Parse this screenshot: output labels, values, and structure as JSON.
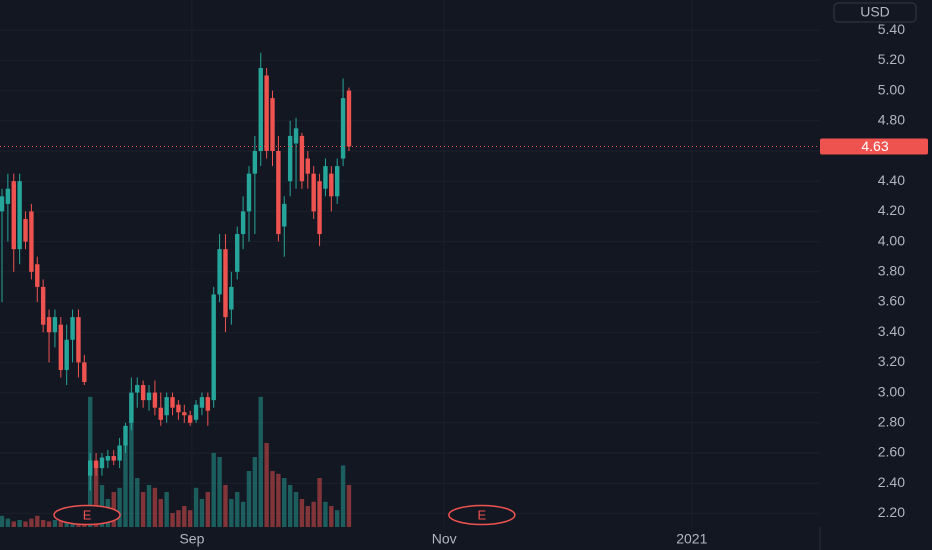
{
  "chart_data": {
    "type": "candlestick",
    "currency": "USD",
    "x": [
      0,
      1,
      2,
      3,
      4,
      5,
      6,
      7,
      8,
      9,
      10,
      11,
      12,
      13,
      14,
      15,
      16,
      17,
      18,
      19,
      20,
      21,
      22,
      23,
      24,
      25,
      26,
      27,
      28,
      29,
      30,
      31,
      32,
      33,
      34,
      35,
      36,
      37,
      38,
      39,
      40,
      41,
      42,
      43,
      44,
      45,
      46,
      47,
      48,
      49,
      50,
      51,
      52,
      53,
      54,
      55,
      56,
      57,
      58,
      59
    ],
    "open": [
      4.2,
      4.25,
      4.4,
      3.95,
      4.15,
      4.2,
      3.85,
      3.7,
      3.5,
      3.4,
      3.45,
      3.15,
      3.35,
      3.5,
      3.2,
      2.45,
      2.55,
      2.5,
      2.55,
      2.58,
      2.55,
      2.65,
      2.8,
      3.0,
      3.05,
      2.95,
      3.0,
      2.9,
      2.85,
      2.97,
      2.92,
      2.87,
      2.85,
      2.82,
      2.9,
      2.97,
      2.95,
      3.65,
      3.95,
      3.55,
      3.8,
      4.05,
      4.2,
      4.45,
      4.6,
      5.1,
      4.95,
      4.6,
      4.1,
      4.4,
      4.65,
      4.7,
      4.55,
      4.45,
      4.4,
      4.35,
      4.45,
      4.3,
      4.55,
      5.0
    ],
    "high": [
      4.35,
      4.45,
      4.45,
      4.45,
      4.2,
      4.25,
      3.9,
      3.75,
      3.55,
      3.55,
      3.5,
      3.45,
      3.55,
      3.55,
      3.25,
      2.6,
      2.6,
      2.6,
      2.62,
      2.62,
      2.7,
      2.8,
      3.1,
      3.1,
      3.08,
      3.05,
      3.08,
      3.0,
      3.0,
      3.0,
      2.95,
      2.92,
      2.88,
      2.95,
      3.0,
      3.0,
      3.7,
      4.05,
      4.05,
      3.8,
      4.1,
      4.3,
      4.5,
      4.7,
      5.25,
      5.15,
      5.0,
      4.7,
      4.3,
      4.8,
      4.82,
      4.72,
      4.6,
      4.5,
      4.45,
      4.55,
      4.5,
      4.55,
      5.08,
      5.02
    ],
    "low": [
      3.6,
      4.0,
      3.8,
      3.85,
      3.95,
      3.75,
      3.6,
      3.4,
      3.2,
      3.3,
      3.1,
      3.05,
      3.2,
      3.1,
      3.05,
      2.35,
      2.45,
      2.45,
      2.5,
      2.52,
      2.5,
      2.6,
      2.75,
      2.9,
      2.9,
      2.88,
      2.85,
      2.78,
      2.8,
      2.85,
      2.82,
      2.8,
      2.78,
      2.8,
      2.85,
      2.78,
      2.9,
      3.6,
      3.4,
      3.45,
      3.75,
      3.95,
      4.0,
      4.05,
      4.5,
      4.55,
      4.5,
      4.0,
      3.9,
      4.3,
      4.35,
      4.35,
      4.35,
      4.15,
      3.97,
      4.3,
      4.2,
      4.25,
      4.5,
      4.6
    ],
    "close": [
      4.3,
      4.35,
      3.95,
      4.4,
      4.0,
      3.8,
      3.7,
      3.45,
      3.4,
      3.5,
      3.15,
      3.35,
      3.5,
      3.2,
      3.07,
      2.55,
      2.5,
      2.57,
      2.58,
      2.55,
      2.65,
      2.78,
      3.0,
      3.05,
      2.95,
      3.0,
      2.9,
      2.82,
      2.97,
      2.9,
      2.87,
      2.85,
      2.8,
      2.92,
      2.97,
      2.88,
      3.65,
      3.95,
      3.5,
      3.7,
      4.05,
      4.2,
      4.45,
      4.6,
      5.15,
      4.6,
      4.6,
      4.05,
      4.25,
      4.7,
      4.75,
      4.4,
      4.45,
      4.2,
      4.05,
      4.5,
      4.3,
      4.5,
      4.95,
      4.63
    ],
    "volume": [
      8,
      6,
      4,
      5,
      4,
      6,
      8,
      5,
      4,
      5,
      6,
      7,
      5,
      6,
      5,
      93,
      45,
      30,
      20,
      25,
      28,
      60,
      95,
      35,
      25,
      30,
      28,
      20,
      25,
      10,
      12,
      15,
      12,
      28,
      20,
      25,
      53,
      50,
      30,
      20,
      25,
      18,
      40,
      50,
      93,
      60,
      40,
      38,
      35,
      30,
      25,
      20,
      15,
      18,
      35,
      18,
      15,
      12,
      44,
      30
    ],
    "volume_ylim": [
      0,
      100
    ],
    "up_color": "#26a69a",
    "down_color": "#ef5350",
    "last_price": 4.63,
    "xlim": [
      -0.34,
      139.1
    ],
    "xticks": [
      {
        "value": 32.3,
        "label": "Sep"
      },
      {
        "value": 75.2,
        "label": "Nov"
      },
      {
        "value": 117.3,
        "label": "2021"
      }
    ],
    "ylim": [
      2.11,
      5.6
    ],
    "yticks": [
      {
        "value": 2.2,
        "label": "2.20"
      },
      {
        "value": 2.4,
        "label": "2.40"
      },
      {
        "value": 2.6,
        "label": "2.60"
      },
      {
        "value": 2.8,
        "label": "2.80"
      },
      {
        "value": 3.0,
        "label": "3.00"
      },
      {
        "value": 3.2,
        "label": "3.20"
      },
      {
        "value": 3.4,
        "label": "3.40"
      },
      {
        "value": 3.6,
        "label": "3.60"
      },
      {
        "value": 3.8,
        "label": "3.80"
      },
      {
        "value": 4.0,
        "label": "4.00"
      },
      {
        "value": 4.2,
        "label": "4.20"
      },
      {
        "value": 4.4,
        "label": "4.40"
      },
      {
        "value": 4.6,
        "label": "4.60"
      },
      {
        "value": 4.8,
        "label": "4.80"
      },
      {
        "value": 5.0,
        "label": "5.00"
      },
      {
        "value": 5.2,
        "label": "5.20"
      },
      {
        "value": 5.4,
        "label": "5.40"
      }
    ],
    "events": [
      {
        "x": 14.46,
        "label": "E"
      },
      {
        "x": 81.6,
        "label": "E"
      }
    ],
    "grid": true
  }
}
